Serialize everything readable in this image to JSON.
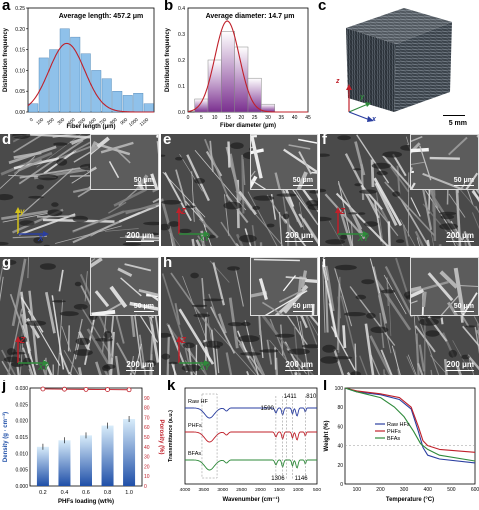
{
  "panels": {
    "a": {
      "label": "a"
    },
    "b": {
      "label": "b"
    },
    "c": {
      "label": "c",
      "scale": "5 mm",
      "axes": {
        "z": "z",
        "y": "y",
        "x": "x"
      }
    },
    "d": {
      "label": "d",
      "scale": "200 μm",
      "inset_scale": "50 μm",
      "axes": {
        "v": "y",
        "h": "X"
      }
    },
    "e": {
      "label": "e",
      "scale": "200 μm",
      "inset_scale": "50 μm",
      "axes": {
        "v": "Z",
        "h": "XY"
      }
    },
    "f": {
      "label": "f",
      "scale": "200 μm",
      "inset_scale": "50 μm",
      "axes": {
        "v": "Z",
        "h": "XY"
      }
    },
    "g": {
      "label": "g",
      "scale": "200 μm",
      "inset_scale": "50 μm",
      "axes": {
        "v": "Z",
        "h": "XY"
      }
    },
    "h": {
      "label": "h",
      "scale": "200 μm",
      "inset_scale": "50 μm",
      "axes": {
        "v": "Z",
        "h": "XY"
      }
    },
    "i": {
      "label": "i",
      "scale": "200 μm",
      "inset_scale": "50 μm"
    },
    "j": {
      "label": "j"
    },
    "k": {
      "label": "k",
      "annotations": [
        "1590",
        "1411",
        "810",
        "1306",
        "1146"
      ],
      "series_labels": [
        "Raw HF",
        "PHFs",
        "BFAs"
      ]
    },
    "l": {
      "label": "l"
    }
  },
  "chart_data": [
    {
      "id": "a",
      "type": "bar",
      "title": "Average length: 457.2 μm",
      "xlabel": "Fiber length (μm)",
      "ylabel": "Distribution frequency",
      "categories": [
        "0",
        "100",
        "200",
        "300",
        "400",
        "500",
        "600",
        "700",
        "800",
        "900",
        "1000",
        "1100"
      ],
      "values": [
        0.02,
        0.13,
        0.15,
        0.2,
        0.18,
        0.14,
        0.1,
        0.08,
        0.05,
        0.04,
        0.045,
        0.02
      ],
      "fit_peak": 0.165,
      "ylim": [
        0,
        0.25
      ],
      "yticks": [
        "0.00",
        "0.05",
        "0.10",
        "0.15",
        "0.20",
        "0.25"
      ],
      "colors": {
        "bar": "#8fc1ea",
        "fit": "#c0202a"
      }
    },
    {
      "id": "b",
      "type": "bar",
      "title": "Average diameter: 14.7 μm",
      "xlabel": "Fiber diameter (μm)",
      "ylabel": "Distribution frequency",
      "x": [
        5,
        10,
        15,
        20,
        25,
        30
      ],
      "values": [
        0.05,
        0.2,
        0.31,
        0.25,
        0.13,
        0.03
      ],
      "fit_peak": 0.35,
      "xlim": [
        0,
        45
      ],
      "ylim": [
        0,
        0.4
      ],
      "xticks": [
        "0",
        "5",
        "10",
        "15",
        "20",
        "25",
        "30",
        "35",
        "40",
        "45"
      ],
      "yticks": [
        "0.0",
        "0.1",
        "0.2",
        "0.3",
        "0.4"
      ],
      "colors": {
        "bar": "#7a2f8f",
        "fit": "#c0202a"
      }
    },
    {
      "id": "j",
      "type": "bar",
      "xlabel": "PHFs loading (wt%)",
      "ylabel": "Density (g · cm⁻³)",
      "y2label": "Porosity (%)",
      "categories": [
        "0.2",
        "0.4",
        "0.6",
        "0.8",
        "1.0"
      ],
      "values": [
        0.012,
        0.014,
        0.0155,
        0.0185,
        0.0205
      ],
      "porosity": [
        99,
        98.8,
        98.6,
        98.4,
        98.2
      ],
      "ylim": [
        0,
        0.03
      ],
      "yticks": [
        "0.000",
        "0.005",
        "0.010",
        "0.015",
        "0.020",
        "0.025",
        "0.030"
      ],
      "y2ticks": [
        "0",
        "10",
        "20",
        "30",
        "40",
        "50",
        "60",
        "70",
        "80",
        "90"
      ],
      "colors": {
        "bar": "#1f4fa8",
        "line": "#c0202a"
      }
    },
    {
      "id": "k",
      "type": "line",
      "xlabel": "Wavenumber (cm⁻¹)",
      "ylabel": "Transmittance (a.u.)",
      "xticks": [
        "4000",
        "3500",
        "3000",
        "2500",
        "2000",
        "1500",
        "1000",
        "500"
      ],
      "series": [
        {
          "name": "Raw HF",
          "color": "#2a3ea0"
        },
        {
          "name": "PHFs",
          "color": "#c0202a"
        },
        {
          "name": "BFAs",
          "color": "#2e8a3a"
        }
      ]
    },
    {
      "id": "l",
      "type": "line",
      "xlabel": "Temperature (°C)",
      "ylabel": "Weight (%)",
      "xticks": [
        "100",
        "200",
        "300",
        "400",
        "500",
        "600"
      ],
      "yticks": [
        "0",
        "20",
        "40",
        "60",
        "80",
        "100"
      ],
      "xlim": [
        50,
        600
      ],
      "ylim": [
        0,
        100
      ],
      "series": [
        {
          "name": "Raw HFs",
          "color": "#2a3ea0",
          "x": [
            50,
            100,
            200,
            280,
            330,
            360,
            380,
            400,
            450,
            600
          ],
          "y": [
            100,
            96,
            93,
            88,
            78,
            55,
            38,
            30,
            26,
            22
          ]
        },
        {
          "name": "PHFs",
          "color": "#c0202a",
          "x": [
            50,
            100,
            200,
            280,
            330,
            360,
            380,
            400,
            450,
            600
          ],
          "y": [
            100,
            97,
            94,
            90,
            80,
            60,
            45,
            40,
            36,
            33
          ]
        },
        {
          "name": "BFAs",
          "color": "#2e8a3a",
          "x": [
            50,
            100,
            200,
            260,
            300,
            340,
            370,
            400,
            450,
            600
          ],
          "y": [
            100,
            96,
            90,
            80,
            70,
            55,
            42,
            36,
            30,
            24
          ]
        }
      ]
    }
  ]
}
